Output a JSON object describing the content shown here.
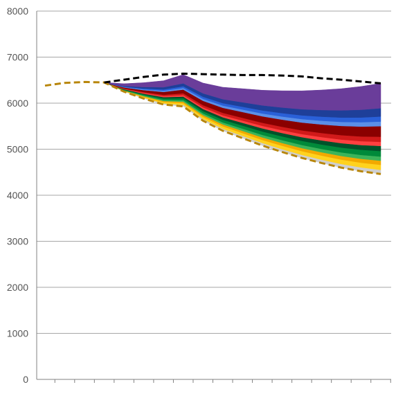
{
  "chart_data": {
    "type": "area",
    "title": "",
    "xlabel": "",
    "ylabel": "",
    "ylim": [
      0,
      8000
    ],
    "yticks": [
      0,
      1000,
      2000,
      3000,
      4000,
      5000,
      6000,
      7000,
      8000
    ],
    "ytick_labels": [
      "0",
      "1000",
      "2000",
      "3000",
      "4000",
      "5000",
      "6000",
      "7000",
      "8000"
    ],
    "x_count": 18,
    "grid": "horizontal",
    "legend": "none",
    "stack_start_index": 3,
    "stack_break_index": 7,
    "base_series": {
      "name": "",
      "color": "#b8860b",
      "style": "dashed",
      "values": [
        6380,
        6440,
        6460,
        6450,
        6250,
        6100,
        5970,
        5930,
        5620,
        5400,
        5240,
        5080,
        4940,
        4810,
        4700,
        4600,
        4520,
        4460
      ]
    },
    "layers": [
      {
        "name": "",
        "color": "#cfcfcf",
        "end_thickness": 90
      },
      {
        "name": "",
        "color": "#ffd21f",
        "end_thickness": 110
      },
      {
        "name": "",
        "color": "#f2a900",
        "end_thickness": 90
      },
      {
        "name": "",
        "color": "#3cb45a",
        "end_thickness": 90
      },
      {
        "name": "",
        "color": "#008a3a",
        "end_thickness": 120
      },
      {
        "name": "",
        "color": "#00522a",
        "end_thickness": 110
      },
      {
        "name": "",
        "color": "#ff4040",
        "end_thickness": 90
      },
      {
        "name": "",
        "color": "#d11a1a",
        "end_thickness": 110
      },
      {
        "name": "",
        "color": "#8a0000",
        "end_thickness": 230
      },
      {
        "name": "",
        "color": "#5b8fe8",
        "end_thickness": 100
      },
      {
        "name": "",
        "color": "#2a60d8",
        "end_thickness": 110
      },
      {
        "name": "",
        "color": "#1e3f99",
        "end_thickness": 180
      },
      {
        "name": "",
        "color": "#6a3d9a",
        "end_thickness": 540
      }
    ],
    "top_series": {
      "name": "",
      "color": "#000000",
      "style": "dashed",
      "values": [
        null,
        null,
        null,
        6450,
        6510,
        6570,
        6620,
        6640,
        6630,
        6620,
        6610,
        6610,
        6600,
        6580,
        6540,
        6510,
        6470,
        6430
      ]
    }
  }
}
